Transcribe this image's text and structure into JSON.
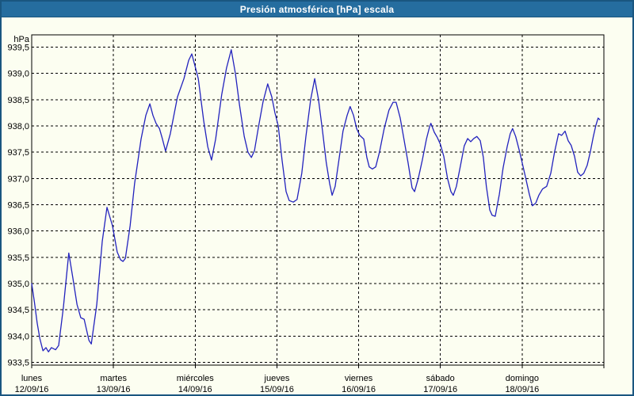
{
  "window": {
    "title": "Presión atmosférica [hPa] escala"
  },
  "colors": {
    "titlebar": "#256d9f",
    "frame": "#1a5680",
    "background": "#fcfef1",
    "line": "#2222bd",
    "grid": "#000000",
    "text": "#000000"
  },
  "chart_data": {
    "type": "line",
    "title": "Presión atmosférica [hPa] escala",
    "ylabel": "hPa",
    "unit_label": "hPa",
    "grid": true,
    "legend": "none",
    "ylim": [
      933.5,
      939.5
    ],
    "x_range_hours": [
      0,
      168
    ],
    "line_color": "#2222bd",
    "y_ticks": [
      {
        "label": "939,5",
        "value": 939.5
      },
      {
        "label": "939,0",
        "value": 939.0
      },
      {
        "label": "938,5",
        "value": 938.5
      },
      {
        "label": "938,0",
        "value": 938.0
      },
      {
        "label": "937,5",
        "value": 937.5
      },
      {
        "label": "937,0",
        "value": 937.0
      },
      {
        "label": "936,5",
        "value": 936.5
      },
      {
        "label": "936,0",
        "value": 936.0
      },
      {
        "label": "935,5",
        "value": 935.5
      },
      {
        "label": "935,0",
        "value": 935.0
      },
      {
        "label": "934,5",
        "value": 934.5
      },
      {
        "label": "934,0",
        "value": 934.0
      },
      {
        "label": "933,5",
        "value": 933.5
      }
    ],
    "x_days": [
      {
        "name": "lunes",
        "date": "12/09/16"
      },
      {
        "name": "martes",
        "date": "13/09/16"
      },
      {
        "name": "miércoles",
        "date": "14/09/16"
      },
      {
        "name": "jueves",
        "date": "15/09/16"
      },
      {
        "name": "viernes",
        "date": "16/09/16"
      },
      {
        "name": "sábado",
        "date": "17/09/16"
      },
      {
        "name": "domingo",
        "date": "18/09/16"
      }
    ],
    "series": [
      {
        "name": "Presión atmosférica",
        "points": [
          [
            0.0,
            935.0
          ],
          [
            0.8,
            934.65
          ],
          [
            1.6,
            934.25
          ],
          [
            2.4,
            933.95
          ],
          [
            3.3,
            933.72
          ],
          [
            4.2,
            933.78
          ],
          [
            4.9,
            933.7
          ],
          [
            5.8,
            933.78
          ],
          [
            7.0,
            933.74
          ],
          [
            7.9,
            933.82
          ],
          [
            9.3,
            934.55
          ],
          [
            10.9,
            935.58
          ],
          [
            12.1,
            935.1
          ],
          [
            13.3,
            934.6
          ],
          [
            14.4,
            934.35
          ],
          [
            15.4,
            934.32
          ],
          [
            16.8,
            933.92
          ],
          [
            17.5,
            933.85
          ],
          [
            19.1,
            934.6
          ],
          [
            20.7,
            935.8
          ],
          [
            22.1,
            936.45
          ],
          [
            23.7,
            936.1
          ],
          [
            25.1,
            935.6
          ],
          [
            26.1,
            935.45
          ],
          [
            26.8,
            935.42
          ],
          [
            27.5,
            935.48
          ],
          [
            28.9,
            936.1
          ],
          [
            30.2,
            936.9
          ],
          [
            32.1,
            937.75
          ],
          [
            33.5,
            938.2
          ],
          [
            34.7,
            938.42
          ],
          [
            35.6,
            938.2
          ],
          [
            36.5,
            938.05
          ],
          [
            37.5,
            937.95
          ],
          [
            38.4,
            937.75
          ],
          [
            39.3,
            937.52
          ],
          [
            40.7,
            937.85
          ],
          [
            42.8,
            938.55
          ],
          [
            44.7,
            938.9
          ],
          [
            46.1,
            939.25
          ],
          [
            47.0,
            939.37
          ],
          [
            47.9,
            939.15
          ],
          [
            48.9,
            938.9
          ],
          [
            50.5,
            938.1
          ],
          [
            51.7,
            937.6
          ],
          [
            52.8,
            937.35
          ],
          [
            54.0,
            937.75
          ],
          [
            55.8,
            938.6
          ],
          [
            57.2,
            939.1
          ],
          [
            58.6,
            939.45
          ],
          [
            59.8,
            939.0
          ],
          [
            61.0,
            938.4
          ],
          [
            62.4,
            937.8
          ],
          [
            63.5,
            937.5
          ],
          [
            64.5,
            937.4
          ],
          [
            65.4,
            937.53
          ],
          [
            66.5,
            937.95
          ],
          [
            67.9,
            938.45
          ],
          [
            69.3,
            938.8
          ],
          [
            70.5,
            938.55
          ],
          [
            71.4,
            938.25
          ],
          [
            72.4,
            938.0
          ],
          [
            73.5,
            937.35
          ],
          [
            74.7,
            936.75
          ],
          [
            75.6,
            936.58
          ],
          [
            76.8,
            936.55
          ],
          [
            77.9,
            936.6
          ],
          [
            79.3,
            937.1
          ],
          [
            80.5,
            937.8
          ],
          [
            81.9,
            938.5
          ],
          [
            83.1,
            938.9
          ],
          [
            84.2,
            938.5
          ],
          [
            85.4,
            937.9
          ],
          [
            86.5,
            937.3
          ],
          [
            87.5,
            936.9
          ],
          [
            88.2,
            936.68
          ],
          [
            89.1,
            936.85
          ],
          [
            90.3,
            937.4
          ],
          [
            91.4,
            937.9
          ],
          [
            92.6,
            938.2
          ],
          [
            93.5,
            938.37
          ],
          [
            94.5,
            938.2
          ],
          [
            95.4,
            937.95
          ],
          [
            96.3,
            937.82
          ],
          [
            97.5,
            937.75
          ],
          [
            98.4,
            937.4
          ],
          [
            99.1,
            937.22
          ],
          [
            100.0,
            937.18
          ],
          [
            101.0,
            937.22
          ],
          [
            102.1,
            937.5
          ],
          [
            103.5,
            937.95
          ],
          [
            104.9,
            938.3
          ],
          [
            106.1,
            938.45
          ],
          [
            107.0,
            938.45
          ],
          [
            108.2,
            938.15
          ],
          [
            109.3,
            937.75
          ],
          [
            110.5,
            937.3
          ],
          [
            111.7,
            936.82
          ],
          [
            112.4,
            936.75
          ],
          [
            113.5,
            937.0
          ],
          [
            114.7,
            937.35
          ],
          [
            115.9,
            937.75
          ],
          [
            116.8,
            937.98
          ],
          [
            117.2,
            938.05
          ],
          [
            118.2,
            937.88
          ],
          [
            119.1,
            937.78
          ],
          [
            120.0,
            937.65
          ],
          [
            121.0,
            937.42
          ],
          [
            122.1,
            937.0
          ],
          [
            123.1,
            936.75
          ],
          [
            123.8,
            936.68
          ],
          [
            124.7,
            936.85
          ],
          [
            125.9,
            937.25
          ],
          [
            127.0,
            937.62
          ],
          [
            128.0,
            937.76
          ],
          [
            128.9,
            937.7
          ],
          [
            129.8,
            937.76
          ],
          [
            130.7,
            937.8
          ],
          [
            131.7,
            937.72
          ],
          [
            132.6,
            937.4
          ],
          [
            133.5,
            936.85
          ],
          [
            134.5,
            936.4
          ],
          [
            135.2,
            936.3
          ],
          [
            136.1,
            936.28
          ],
          [
            137.3,
            936.7
          ],
          [
            138.4,
            937.2
          ],
          [
            139.6,
            937.6
          ],
          [
            140.5,
            937.85
          ],
          [
            141.2,
            937.95
          ],
          [
            142.1,
            937.8
          ],
          [
            143.1,
            937.55
          ],
          [
            144.0,
            937.3
          ],
          [
            144.9,
            937.05
          ],
          [
            146.1,
            936.7
          ],
          [
            147.0,
            936.48
          ],
          [
            148.0,
            936.53
          ],
          [
            148.9,
            936.68
          ],
          [
            150.0,
            936.8
          ],
          [
            151.2,
            936.85
          ],
          [
            152.4,
            937.1
          ],
          [
            153.5,
            937.5
          ],
          [
            154.7,
            937.85
          ],
          [
            155.6,
            937.82
          ],
          [
            156.6,
            937.9
          ],
          [
            157.5,
            937.72
          ],
          [
            158.4,
            937.63
          ],
          [
            159.4,
            937.42
          ],
          [
            160.3,
            937.12
          ],
          [
            161.2,
            937.05
          ],
          [
            162.1,
            937.1
          ],
          [
            163.1,
            937.25
          ],
          [
            164.0,
            937.5
          ],
          [
            164.9,
            937.8
          ],
          [
            165.6,
            938.0
          ],
          [
            166.3,
            938.15
          ],
          [
            166.8,
            938.12
          ]
        ]
      }
    ]
  }
}
